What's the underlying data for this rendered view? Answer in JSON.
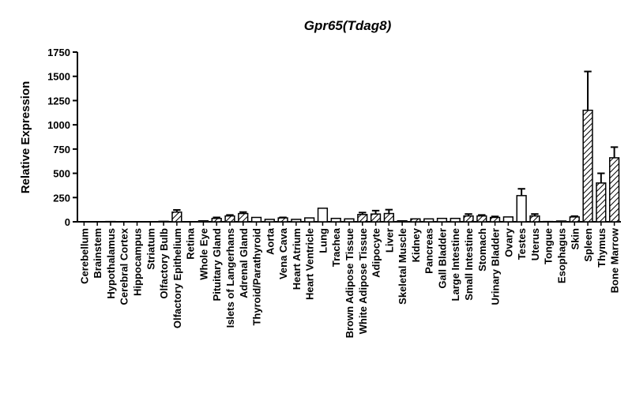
{
  "chart_data": {
    "type": "bar",
    "title": "Gpr65(Tdag8)",
    "y_label": "Relative Expression",
    "categories": [
      "Cerebellum",
      "Brainstem",
      "Hypothalamus",
      "Cerebral Cortex",
      "Hippocampus",
      "Striatum",
      "Olfactory Bulb",
      "Olfactory Epithelium",
      "Retina",
      "Whole Eye",
      "Pituitary Gland",
      "Islets of Langerhans",
      "Adrenal Gland",
      "Thyroid/Parathyroid",
      "Aorta",
      "Vena Cava",
      "Heart Atrium",
      "Heart Ventricle",
      "Lung",
      "Trachea",
      "Brown Adipose Tissue",
      "White Adipose Tissue",
      "Adipocyte",
      "Liver",
      "Skeletal Muscle",
      "Kidney",
      "Pancreas",
      "Gall Bladder",
      "Large Intestine",
      "Small Intestine",
      "Stomach",
      "Urinary Bladder",
      "Ovary",
      "Testes",
      "Uterus",
      "Tongue",
      "Esophagus",
      "Skin",
      "Spleen",
      "Thymus",
      "Bone Marrow"
    ],
    "values": [
      2,
      2,
      3,
      2,
      1,
      2,
      5,
      100,
      2,
      10,
      35,
      60,
      85,
      45,
      25,
      40,
      25,
      40,
      140,
      35,
      30,
      75,
      80,
      85,
      10,
      30,
      30,
      35,
      35,
      60,
      60,
      45,
      50,
      270,
      60,
      3,
      8,
      50,
      1150,
      400,
      660
    ],
    "errors": [
      null,
      null,
      null,
      null,
      null,
      null,
      null,
      22,
      null,
      null,
      10,
      10,
      15,
      null,
      null,
      5,
      null,
      null,
      null,
      null,
      null,
      20,
      35,
      40,
      null,
      null,
      null,
      null,
      null,
      20,
      10,
      10,
      null,
      70,
      20,
      null,
      null,
      8,
      400,
      100,
      110
    ],
    "patterns": [
      "open",
      "hatch",
      "open",
      "open",
      "open",
      "hatch",
      "open",
      "hatch",
      "open",
      "open",
      "hatch",
      "hatch",
      "hatch",
      "open",
      "open",
      "hatch",
      "open",
      "open",
      "open",
      "open",
      "open",
      "hatch",
      "hatch",
      "hatch",
      "open",
      "hatch",
      "open",
      "open",
      "open",
      "hatch",
      "hatch",
      "hatch",
      "open",
      "open",
      "hatch",
      "open",
      "open",
      "hatch",
      "hatch",
      "hatch",
      "hatch"
    ],
    "color": "#000000",
    "ylim": [
      0,
      1750
    ],
    "yticks": [
      0,
      250,
      500,
      750,
      1000,
      1250,
      1500,
      1750
    ]
  }
}
